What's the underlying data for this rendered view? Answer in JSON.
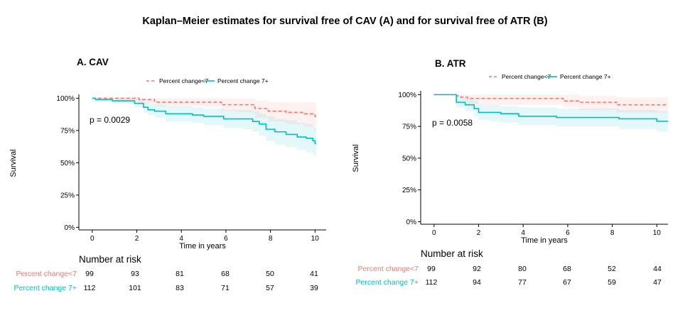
{
  "figure_title": "Kaplan–Meier estimates for survival free of CAV (A) and for survival free of ATR (B)",
  "colors": {
    "group1": "#F8766D",
    "group2": "#00BFC4"
  },
  "chart_data": [
    {
      "type": "line",
      "panel_title": "A. CAV",
      "xlabel": "Time in years",
      "ylabel": "Survival",
      "xlim": [
        -0.6,
        10.5
      ],
      "ylim": [
        -0.02,
        1.03
      ],
      "x_ticks": [
        0,
        2,
        4,
        6,
        8,
        10
      ],
      "y_ticks": [
        0,
        0.25,
        0.5,
        0.75,
        1.0
      ],
      "y_tick_labels": [
        "0%",
        "25%",
        "50%",
        "75%",
        "100%"
      ],
      "pvalue": "p = 0.0029",
      "legend": [
        "Percent change<7",
        "Percent change 7+"
      ],
      "series": [
        {
          "name": "Percent change<7",
          "style": "dashed",
          "x": [
            0,
            0.2,
            1.1,
            2.1,
            2.8,
            5.1,
            5.8,
            6.5,
            7.3,
            7.9,
            8.7,
            9.5,
            10.0
          ],
          "y": [
            1.0,
            1.0,
            1.0,
            0.99,
            0.97,
            0.97,
            0.95,
            0.95,
            0.92,
            0.9,
            0.89,
            0.88,
            0.86
          ],
          "lower": [
            1.0,
            1.0,
            0.98,
            0.96,
            0.94,
            0.93,
            0.9,
            0.89,
            0.85,
            0.82,
            0.8,
            0.78,
            0.75
          ],
          "upper": [
            1.0,
            1.0,
            1.0,
            1.0,
            1.0,
            1.0,
            1.0,
            1.0,
            0.98,
            0.97,
            0.97,
            0.97,
            0.96
          ]
        },
        {
          "name": "Percent change 7+",
          "style": "solid",
          "x": [
            0,
            0.15,
            0.9,
            1.9,
            2.3,
            2.5,
            2.8,
            3.3,
            4.5,
            5.0,
            5.9,
            6.8,
            7.2,
            7.5,
            7.8,
            8.2,
            8.7,
            9.2,
            9.6,
            9.9,
            10.0
          ],
          "y": [
            1.0,
            0.99,
            0.98,
            0.96,
            0.93,
            0.91,
            0.9,
            0.88,
            0.87,
            0.86,
            0.84,
            0.84,
            0.82,
            0.8,
            0.76,
            0.74,
            0.72,
            0.7,
            0.69,
            0.67,
            0.65
          ],
          "lower": [
            1.0,
            0.98,
            0.96,
            0.93,
            0.89,
            0.87,
            0.85,
            0.82,
            0.81,
            0.79,
            0.77,
            0.76,
            0.74,
            0.71,
            0.67,
            0.64,
            0.62,
            0.6,
            0.58,
            0.56,
            0.55
          ],
          "upper": [
            1.0,
            1.0,
            1.0,
            0.99,
            0.97,
            0.96,
            0.95,
            0.94,
            0.93,
            0.92,
            0.91,
            0.91,
            0.9,
            0.88,
            0.86,
            0.84,
            0.83,
            0.81,
            0.8,
            0.78,
            0.77
          ]
        }
      ],
      "risk_table": {
        "title": "Number at risk",
        "times": [
          0,
          2,
          4,
          6,
          8,
          10
        ],
        "rows": [
          {
            "label": "Percent change<7",
            "values": [
              "99",
              "93",
              "81",
              "68",
              "50",
              "41"
            ]
          },
          {
            "label": "Percent change 7+",
            "values": [
              "112",
              "101",
              "83",
              "71",
              "57",
              "39"
            ]
          }
        ]
      }
    },
    {
      "type": "line",
      "panel_title": "B. ATR",
      "xlabel": "Time in years",
      "ylabel": "Survival",
      "xlim": [
        -0.6,
        10.5
      ],
      "ylim": [
        -0.02,
        1.03
      ],
      "x_ticks": [
        0,
        2,
        4,
        6,
        8,
        10
      ],
      "y_ticks": [
        0,
        0.25,
        0.5,
        0.75,
        1.0
      ],
      "y_tick_labels": [
        "0%",
        "25%",
        "50%",
        "75%",
        "100%"
      ],
      "pvalue": "p = 0.0058",
      "legend": [
        "Percent change<7",
        "Percent change 7+"
      ],
      "series": [
        {
          "name": "Percent change<7",
          "style": "dashed",
          "x": [
            0,
            0.9,
            1.0,
            1.2,
            1.5,
            2.0,
            5.8,
            6.5,
            8.2,
            10.5
          ],
          "y": [
            1.0,
            1.0,
            0.99,
            0.98,
            0.97,
            0.97,
            0.95,
            0.94,
            0.92,
            0.92
          ],
          "lower": [
            1.0,
            1.0,
            0.97,
            0.95,
            0.93,
            0.92,
            0.9,
            0.88,
            0.86,
            0.86
          ],
          "upper": [
            1.0,
            1.0,
            1.0,
            1.0,
            1.0,
            1.0,
            1.0,
            0.99,
            0.98,
            0.98
          ]
        },
        {
          "name": "Percent change 7+",
          "style": "solid",
          "x": [
            0,
            0.85,
            1.0,
            1.4,
            1.8,
            2.0,
            2.5,
            3.0,
            3.8,
            5.5,
            8.3,
            10.0,
            10.5
          ],
          "y": [
            1.0,
            1.0,
            0.94,
            0.92,
            0.89,
            0.86,
            0.86,
            0.85,
            0.83,
            0.82,
            0.81,
            0.79,
            0.79
          ],
          "lower": [
            1.0,
            1.0,
            0.9,
            0.87,
            0.83,
            0.8,
            0.79,
            0.78,
            0.76,
            0.75,
            0.73,
            0.71,
            0.71
          ],
          "upper": [
            1.0,
            1.0,
            0.98,
            0.97,
            0.95,
            0.92,
            0.92,
            0.91,
            0.9,
            0.89,
            0.88,
            0.87,
            0.87
          ]
        }
      ],
      "risk_table": {
        "title": "Number at risk",
        "times": [
          0,
          2,
          4,
          6,
          8,
          10
        ],
        "rows": [
          {
            "label": "Percent change<7",
            "values": [
              "99",
              "92",
              "80",
              "68",
              "52",
              "44"
            ]
          },
          {
            "label": "Percent change 7+",
            "values": [
              "112",
              "94",
              "77",
              "67",
              "59",
              "47"
            ]
          }
        ]
      }
    }
  ]
}
